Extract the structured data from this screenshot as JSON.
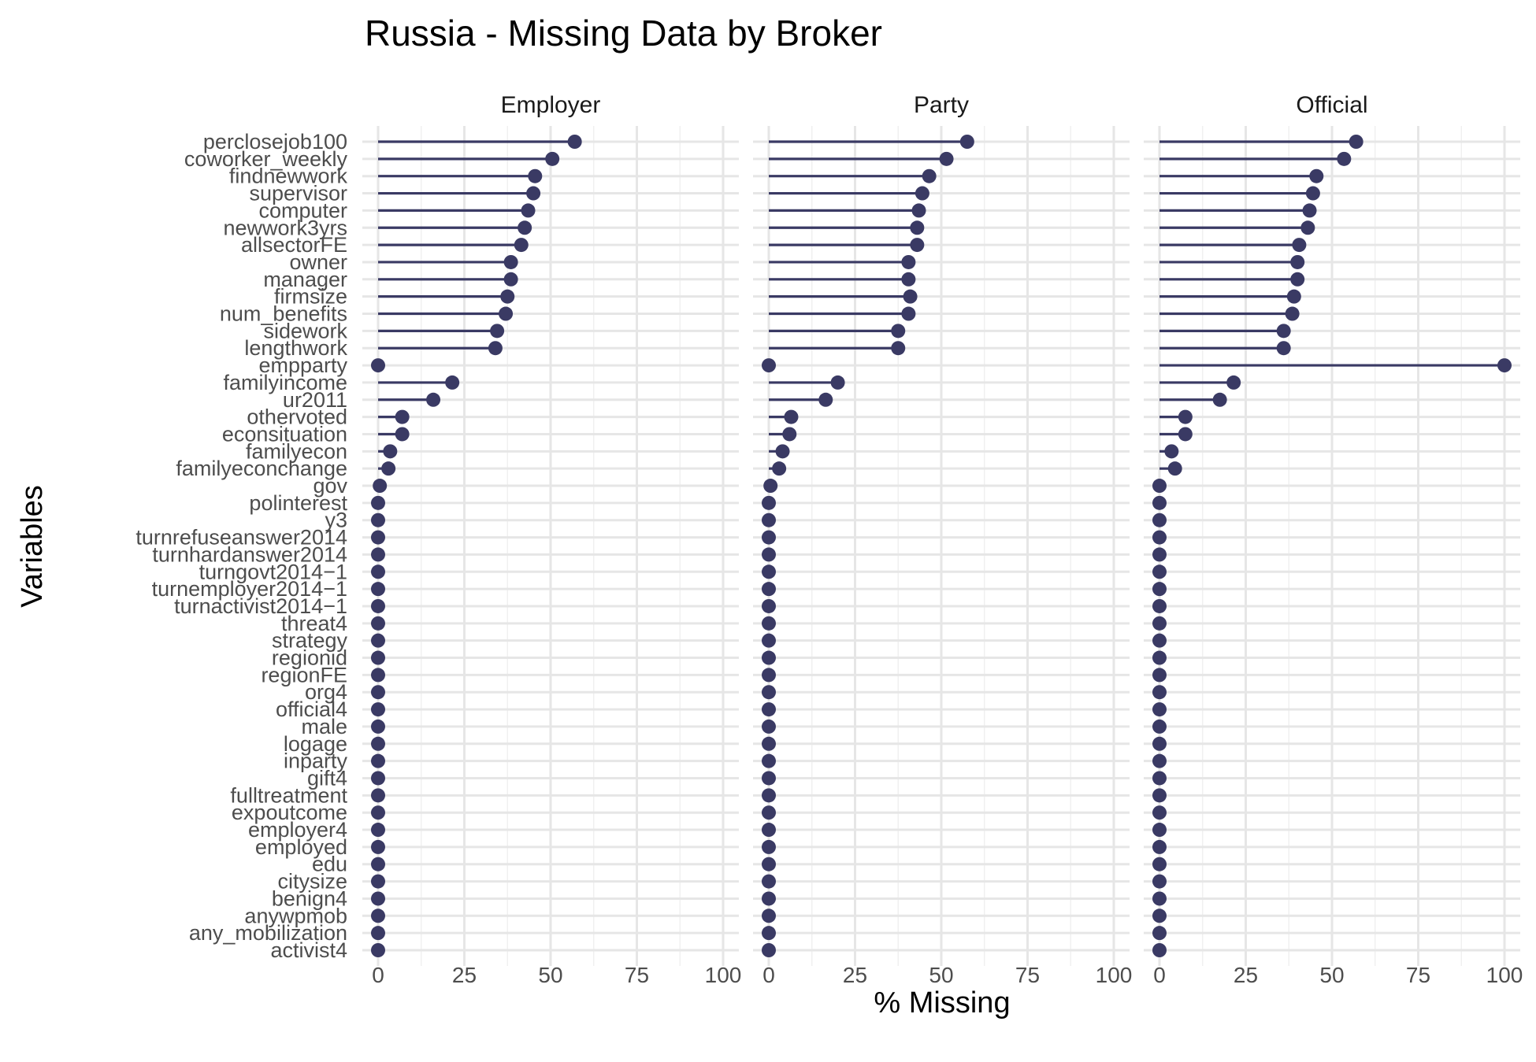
{
  "chart_data": {
    "type": "lollipop",
    "title": "Russia - Missing Data by Broker",
    "xlabel": "% Missing",
    "ylabel": "Variables",
    "xlim": [
      0,
      100
    ],
    "xticks": [
      0,
      25,
      50,
      75,
      100
    ],
    "grid": true,
    "colors": {
      "mark": "#3a3a64"
    },
    "categories": [
      "perclosejob100",
      "coworker_weekly",
      "findnewwork",
      "supervisor",
      "computer",
      "newwork3yrs",
      "allsectorFE",
      "owner",
      "manager",
      "firmsize",
      "num_benefits",
      "sidework",
      "lengthwork",
      "empparty",
      "familyincome",
      "ur2011",
      "othervoted",
      "econsituation",
      "familyecon",
      "familyeconchange",
      "gov",
      "polinterest",
      "y3",
      "turnrefuseanswer2014",
      "turnhardanswer2014",
      "turngovt2014_1",
      "turnemployer2014_1",
      "turnactivist2014_1",
      "threat4",
      "strategy",
      "regionid",
      "regionFE",
      "org4",
      "official4",
      "male",
      "logage",
      "inparty",
      "gift4",
      "fulltreatment",
      "expoutcome",
      "employer4",
      "employed",
      "edu",
      "citysize",
      "benign4",
      "anywpmob",
      "any_mobilization",
      "activist4"
    ],
    "category_labels": [
      "perclosejob100",
      "coworker_weekly",
      "findnewwork",
      "supervisor",
      "computer",
      "newwork3yrs",
      "allsectorFE",
      "owner",
      "manager",
      "firmsize",
      "num_benefits",
      "sidework",
      "lengthwork",
      "empparty",
      "familyincome",
      "ur2011",
      "othervoted",
      "econsituation",
      "familyecon",
      "familyeconchange",
      "gov",
      "polinterest",
      "y3",
      "turnrefuseanswer2014",
      "turnhardanswer2014",
      "turngovt2014−1",
      "turnemployer2014−1",
      "turnactivist2014−1",
      "threat4",
      "strategy",
      "regionid",
      "regionFE",
      "org4",
      "official4",
      "male",
      "logage",
      "inparty",
      "gift4",
      "fulltreatment",
      "expoutcome",
      "employer4",
      "employed",
      "edu",
      "citysize",
      "benign4",
      "anywpmob",
      "any_mobilization",
      "activist4"
    ],
    "facets": [
      {
        "name": "Employer",
        "values": [
          57,
          50.5,
          45.5,
          45,
          43.5,
          42.5,
          41.5,
          38.5,
          38.5,
          37.5,
          37,
          34.5,
          34,
          0,
          21.5,
          16,
          7,
          7,
          3.5,
          3,
          0.5,
          0,
          0,
          0,
          0,
          0,
          0,
          0,
          0,
          0,
          0,
          0,
          0,
          0,
          0,
          0,
          0,
          0,
          0,
          0,
          0,
          0,
          0,
          0,
          0,
          0,
          0,
          0
        ]
      },
      {
        "name": "Party",
        "values": [
          57.5,
          51.5,
          46.5,
          44.5,
          43.5,
          43,
          43,
          40.5,
          40.5,
          41,
          40.5,
          37.5,
          37.5,
          0,
          20,
          16.5,
          6.5,
          6,
          4,
          3,
          0.5,
          0,
          0,
          0,
          0,
          0,
          0,
          0,
          0,
          0,
          0,
          0,
          0,
          0,
          0,
          0,
          0,
          0,
          0,
          0,
          0,
          0,
          0,
          0,
          0,
          0,
          0,
          0
        ]
      },
      {
        "name": "Official",
        "values": [
          57,
          53.5,
          45.5,
          44.5,
          43.5,
          43,
          40.5,
          40,
          40,
          39,
          38.5,
          36,
          36,
          100,
          21.5,
          17.5,
          7.5,
          7.5,
          3.5,
          4.5,
          0,
          0,
          0,
          0,
          0,
          0,
          0,
          0,
          0,
          0,
          0,
          0,
          0,
          0,
          0,
          0,
          0,
          0,
          0,
          0,
          0,
          0,
          0,
          0,
          0,
          0,
          0,
          0
        ]
      }
    ]
  }
}
